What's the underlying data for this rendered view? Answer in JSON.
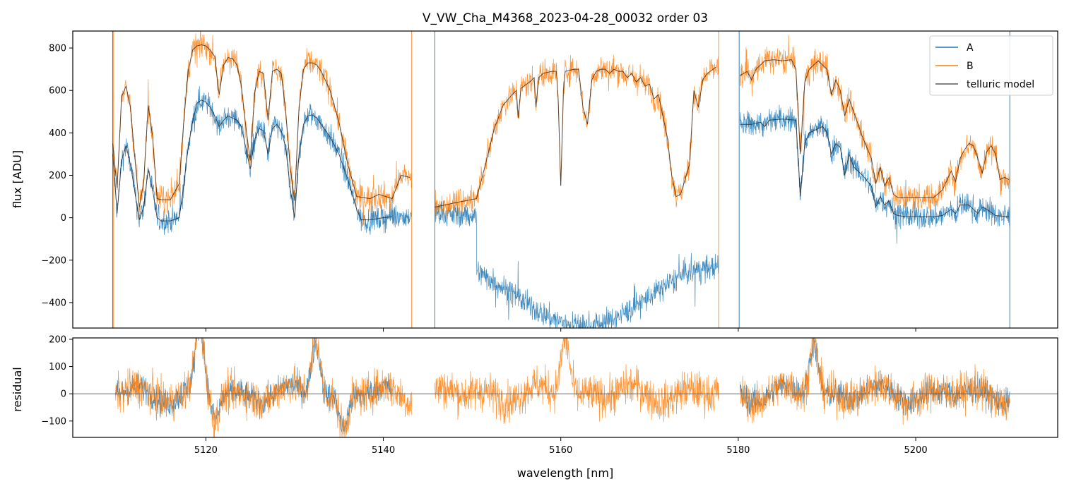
{
  "chart_data": {
    "type": "line",
    "title": "V_VW_Cha_M4368_2023-04-28_00032  order 03",
    "xlabel": "wavelength [nm]",
    "xlim": [
      5105,
      5216
    ],
    "x_ticks": [
      "5120",
      "5140",
      "5160",
      "5180",
      "5200"
    ],
    "x_tick_values": [
      5120,
      5140,
      5160,
      5180,
      5200
    ],
    "colors": {
      "A": "#1f77b4",
      "B": "#ff7f0e",
      "model": "#222222"
    },
    "legend": {
      "placement": "top-right",
      "entries": [
        "A",
        "B",
        "telluric model"
      ]
    },
    "top_panel": {
      "ylabel": "flux [ADU]",
      "ylim": [
        -520,
        880
      ],
      "y_ticks": [
        "800",
        "600",
        "400",
        "200",
        "0",
        "−200",
        "−400"
      ],
      "y_tick_values": [
        800,
        600,
        400,
        200,
        0,
        -200,
        -400
      ],
      "segments": [
        {
          "x_range": [
            5109.5,
            5143.2
          ],
          "model_A": [
            [
              5109.5,
              300
            ],
            [
              5110.0,
              20
            ],
            [
              5110.5,
              270
            ],
            [
              5111.0,
              340
            ],
            [
              5111.5,
              250
            ],
            [
              5112.0,
              120
            ],
            [
              5112.5,
              -10
            ],
            [
              5113.0,
              50
            ],
            [
              5113.5,
              230
            ],
            [
              5114.0,
              130
            ],
            [
              5114.5,
              0
            ],
            [
              5115.0,
              -15
            ],
            [
              5116.0,
              -15
            ],
            [
              5117.0,
              0
            ],
            [
              5117.5,
              150
            ],
            [
              5118.0,
              330
            ],
            [
              5118.5,
              450
            ],
            [
              5119.0,
              540
            ],
            [
              5119.5,
              555
            ],
            [
              5120.0,
              545
            ],
            [
              5120.5,
              520
            ],
            [
              5121.0,
              480
            ],
            [
              5121.5,
              430
            ],
            [
              5122.0,
              460
            ],
            [
              5122.5,
              480
            ],
            [
              5123.0,
              470
            ],
            [
              5123.5,
              460
            ],
            [
              5124.0,
              430
            ],
            [
              5124.5,
              330
            ],
            [
              5125.0,
              230
            ],
            [
              5125.5,
              370
            ],
            [
              5126.0,
              420
            ],
            [
              5126.5,
              410
            ],
            [
              5127.0,
              300
            ],
            [
              5127.5,
              420
            ],
            [
              5128.0,
              440
            ],
            [
              5128.5,
              410
            ],
            [
              5129.0,
              330
            ],
            [
              5129.5,
              140
            ],
            [
              5130.0,
              0
            ],
            [
              5130.5,
              300
            ],
            [
              5131.0,
              440
            ],
            [
              5131.5,
              480
            ],
            [
              5132.0,
              485
            ],
            [
              5132.5,
              470
            ],
            [
              5133.0,
              440
            ],
            [
              5134.0,
              380
            ],
            [
              5135.0,
              300
            ],
            [
              5136.0,
              180
            ],
            [
              5137.0,
              40
            ],
            [
              5137.5,
              -10
            ],
            [
              5138.5,
              -10
            ],
            [
              5140.0,
              0
            ],
            [
              5141.0,
              5
            ]
          ],
          "model_B": [
            [
              5109.5,
              350
            ],
            [
              5110.0,
              140
            ],
            [
              5110.5,
              570
            ],
            [
              5111.0,
              620
            ],
            [
              5111.5,
              520
            ],
            [
              5112.0,
              280
            ],
            [
              5112.5,
              50
            ],
            [
              5113.0,
              170
            ],
            [
              5113.5,
              530
            ],
            [
              5114.0,
              380
            ],
            [
              5114.5,
              90
            ],
            [
              5115.0,
              85
            ],
            [
              5116.0,
              85
            ],
            [
              5117.0,
              160
            ],
            [
              5117.5,
              450
            ],
            [
              5118.0,
              690
            ],
            [
              5118.5,
              790
            ],
            [
              5119.0,
              810
            ],
            [
              5119.5,
              815
            ],
            [
              5120.0,
              810
            ],
            [
              5120.5,
              790
            ],
            [
              5121.0,
              760
            ],
            [
              5121.5,
              580
            ],
            [
              5122.0,
              720
            ],
            [
              5122.5,
              755
            ],
            [
              5123.0,
              750
            ],
            [
              5123.5,
              720
            ],
            [
              5124.0,
              620
            ],
            [
              5124.5,
              430
            ],
            [
              5125.0,
              270
            ],
            [
              5125.5,
              590
            ],
            [
              5126.0,
              690
            ],
            [
              5126.5,
              680
            ],
            [
              5127.0,
              460
            ],
            [
              5127.5,
              690
            ],
            [
              5128.0,
              700
            ],
            [
              5128.5,
              680
            ],
            [
              5129.0,
              500
            ],
            [
              5129.5,
              240
            ],
            [
              5130.0,
              80
            ],
            [
              5130.5,
              520
            ],
            [
              5131.0,
              700
            ],
            [
              5131.5,
              730
            ],
            [
              5132.0,
              730
            ],
            [
              5132.5,
              720
            ],
            [
              5133.0,
              690
            ],
            [
              5134.0,
              600
            ],
            [
              5135.0,
              450
            ],
            [
              5136.0,
              250
            ],
            [
              5137.0,
              100
            ],
            [
              5138.5,
              90
            ],
            [
              5139.5,
              110
            ],
            [
              5141.0,
              90
            ],
            [
              5142.0,
              200
            ],
            [
              5143.0,
              190
            ]
          ]
        },
        {
          "x_range": [
            5145.8,
            5177.8
          ],
          "model_A": [],
          "model_B": [
            [
              5145.8,
              50
            ],
            [
              5148.0,
              70
            ],
            [
              5150.5,
              90
            ],
            [
              5151.5,
              250
            ],
            [
              5152.5,
              420
            ],
            [
              5153.5,
              530
            ],
            [
              5154.5,
              580
            ],
            [
              5155.0,
              600
            ],
            [
              5155.2,
              470
            ],
            [
              5155.5,
              610
            ],
            [
              5156.5,
              640
            ],
            [
              5157.0,
              660
            ],
            [
              5157.2,
              520
            ],
            [
              5157.5,
              660
            ],
            [
              5158.0,
              680
            ],
            [
              5159.0,
              690
            ],
            [
              5159.5,
              690
            ],
            [
              5159.7,
              560
            ],
            [
              5160.0,
              150
            ],
            [
              5160.3,
              600
            ],
            [
              5160.5,
              690
            ],
            [
              5161.5,
              700
            ],
            [
              5162.0,
              700
            ],
            [
              5162.5,
              520
            ],
            [
              5163.0,
              440
            ],
            [
              5163.5,
              650
            ],
            [
              5164.0,
              690
            ],
            [
              5164.5,
              700
            ],
            [
              5165.0,
              700
            ],
            [
              5165.5,
              680
            ],
            [
              5166.0,
              700
            ],
            [
              5166.5,
              690
            ],
            [
              5167.0,
              690
            ],
            [
              5167.5,
              660
            ],
            [
              5168.0,
              680
            ],
            [
              5168.5,
              640
            ],
            [
              5169.0,
              660
            ],
            [
              5169.5,
              620
            ],
            [
              5170.0,
              630
            ],
            [
              5170.5,
              560
            ],
            [
              5171.0,
              580
            ],
            [
              5171.5,
              480
            ],
            [
              5172.0,
              380
            ],
            [
              5172.5,
              200
            ],
            [
              5173.0,
              100
            ],
            [
              5173.5,
              110
            ],
            [
              5174.0,
              180
            ],
            [
              5174.5,
              250
            ],
            [
              5175.0,
              600
            ],
            [
              5175.5,
              520
            ],
            [
              5176.0,
              650
            ],
            [
              5176.5,
              680
            ],
            [
              5177.5,
              710
            ]
          ]
        },
        {
          "x_range": [
            5180.2,
            5210.6
          ],
          "model_A": [
            [
              5180.2,
              440
            ],
            [
              5181.5,
              440
            ],
            [
              5182.5,
              450
            ],
            [
              5183.0,
              430
            ],
            [
              5183.5,
              460
            ],
            [
              5185.0,
              465
            ],
            [
              5186.5,
              460
            ],
            [
              5187.0,
              100
            ],
            [
              5187.5,
              350
            ],
            [
              5188.0,
              400
            ],
            [
              5189.0,
              420
            ],
            [
              5189.5,
              430
            ],
            [
              5190.0,
              400
            ],
            [
              5190.5,
              300
            ],
            [
              5191.0,
              350
            ],
            [
              5191.5,
              330
            ],
            [
              5192.0,
              200
            ],
            [
              5192.5,
              300
            ],
            [
              5193.0,
              240
            ],
            [
              5194.0,
              200
            ],
            [
              5195.0,
              150
            ],
            [
              5195.5,
              50
            ],
            [
              5196.0,
              100
            ],
            [
              5196.5,
              60
            ],
            [
              5197.0,
              80
            ],
            [
              5197.5,
              20
            ],
            [
              5198.0,
              10
            ],
            [
              5199.0,
              5
            ],
            [
              5202.0,
              5
            ],
            [
              5203.0,
              10
            ],
            [
              5204.0,
              40
            ],
            [
              5204.5,
              20
            ],
            [
              5205.0,
              60
            ],
            [
              5206.0,
              60
            ],
            [
              5206.5,
              40
            ],
            [
              5207.0,
              20
            ],
            [
              5207.5,
              50
            ],
            [
              5208.0,
              40
            ],
            [
              5209.0,
              10
            ],
            [
              5210.5,
              5
            ]
          ],
          "model_B": [
            [
              5180.2,
              670
            ],
            [
              5181.0,
              690
            ],
            [
              5181.5,
              650
            ],
            [
              5182.0,
              700
            ],
            [
              5183.0,
              740
            ],
            [
              5184.0,
              745
            ],
            [
              5185.0,
              740
            ],
            [
              5186.0,
              745
            ],
            [
              5186.5,
              700
            ],
            [
              5187.0,
              300
            ],
            [
              5187.5,
              640
            ],
            [
              5188.0,
              700
            ],
            [
              5189.0,
              740
            ],
            [
              5190.0,
              700
            ],
            [
              5190.5,
              580
            ],
            [
              5191.0,
              650
            ],
            [
              5191.5,
              600
            ],
            [
              5192.0,
              480
            ],
            [
              5192.5,
              560
            ],
            [
              5193.0,
              500
            ],
            [
              5194.0,
              380
            ],
            [
              5195.0,
              280
            ],
            [
              5195.5,
              160
            ],
            [
              5196.0,
              240
            ],
            [
              5196.5,
              150
            ],
            [
              5197.0,
              190
            ],
            [
              5197.5,
              110
            ],
            [
              5198.0,
              95
            ],
            [
              5200.0,
              95
            ],
            [
              5202.0,
              95
            ],
            [
              5203.0,
              130
            ],
            [
              5204.0,
              220
            ],
            [
              5204.5,
              170
            ],
            [
              5205.0,
              280
            ],
            [
              5205.5,
              320
            ],
            [
              5206.0,
              350
            ],
            [
              5206.5,
              340
            ],
            [
              5207.0,
              280
            ],
            [
              5207.5,
              210
            ],
            [
              5208.0,
              310
            ],
            [
              5208.5,
              340
            ],
            [
              5209.0,
              300
            ],
            [
              5209.5,
              180
            ],
            [
              5210.0,
              190
            ],
            [
              5210.5,
              180
            ]
          ]
        }
      ],
      "A_deep_region": {
        "x_range": [
          5150.5,
          5177.8
        ],
        "floor": -520
      }
    },
    "bottom_panel": {
      "ylabel": "residual",
      "ylim": [
        -160,
        205
      ],
      "y_ticks": [
        "200",
        "100",
        "0",
        "−100"
      ],
      "y_tick_values": [
        200,
        100,
        0,
        -100
      ],
      "zero_line": 0,
      "features": [
        {
          "x": 5119.3,
          "amp": 230
        },
        {
          "x": 5132.4,
          "amp": 210
        },
        {
          "x": 5160.5,
          "amp": 220
        },
        {
          "x": 5188.5,
          "amp": 200
        },
        {
          "x": 5135.5,
          "amp": -130
        },
        {
          "x": 5121.0,
          "amp": -90
        }
      ]
    }
  }
}
